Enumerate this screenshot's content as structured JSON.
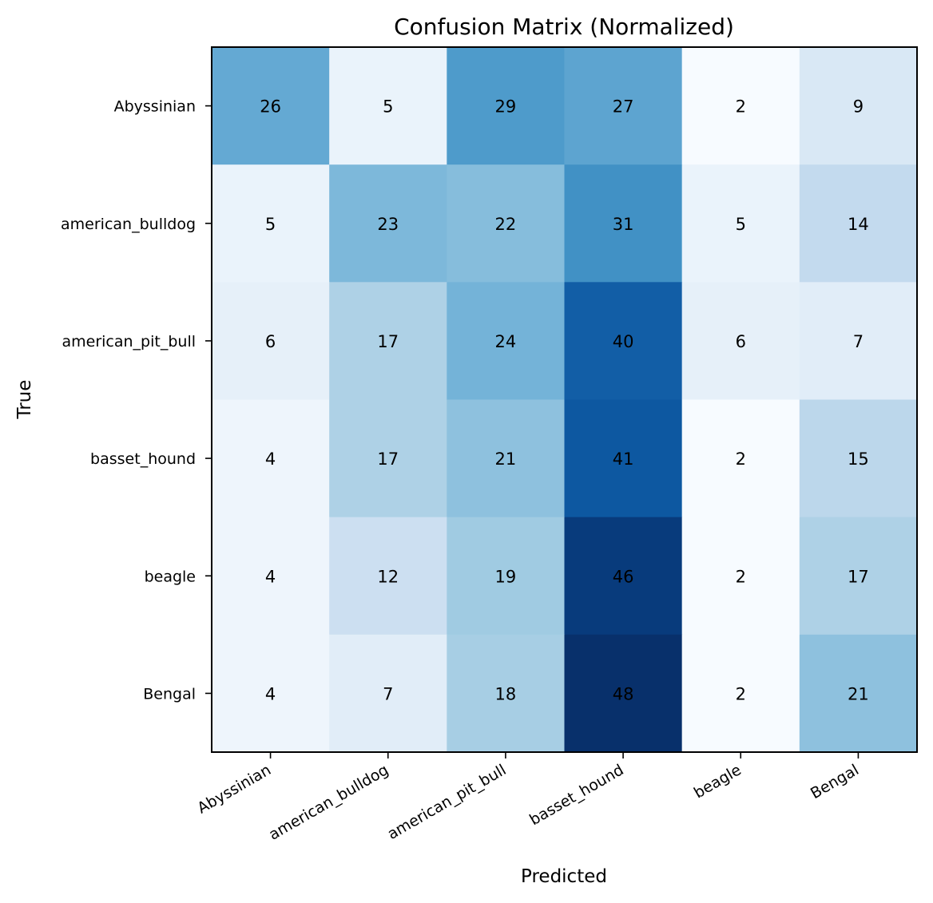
{
  "chart_data": {
    "type": "heatmap",
    "title": "Confusion Matrix (Normalized)",
    "xlabel": "Predicted",
    "ylabel": "True",
    "x_categories": [
      "Abyssinian",
      "american_bulldog",
      "american_pit_bull",
      "basset_hound",
      "beagle",
      "Bengal"
    ],
    "y_categories": [
      "Abyssinian",
      "american_bulldog",
      "american_pit_bull",
      "basset_hound",
      "beagle",
      "Bengal"
    ],
    "values": [
      [
        26,
        5,
        29,
        27,
        2,
        9
      ],
      [
        5,
        23,
        22,
        31,
        5,
        14
      ],
      [
        6,
        17,
        24,
        40,
        6,
        7
      ],
      [
        4,
        17,
        21,
        41,
        2,
        15
      ],
      [
        4,
        12,
        19,
        46,
        2,
        17
      ],
      [
        4,
        7,
        18,
        48,
        2,
        21
      ]
    ],
    "colormap": "Blues",
    "grid": false,
    "legend": "none",
    "x_tick_rotation_deg": 30
  }
}
